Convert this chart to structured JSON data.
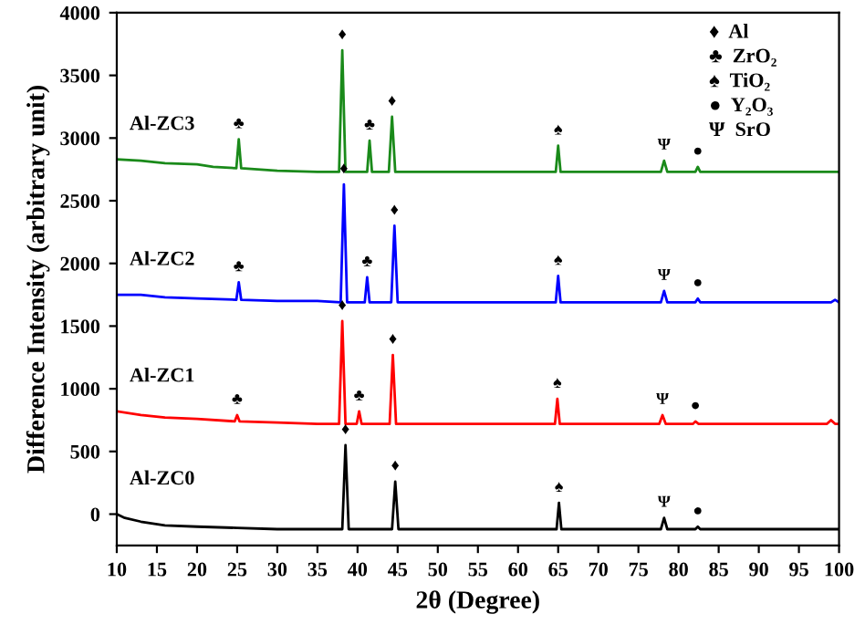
{
  "chart_data": {
    "type": "line",
    "xlabel": "2θ (Degree)",
    "ylabel": "Difference Intensity (arbitrary unit)",
    "xlim": [
      10,
      100
    ],
    "xticks": [
      10,
      15,
      20,
      25,
      30,
      35,
      40,
      45,
      50,
      55,
      60,
      65,
      70,
      75,
      80,
      85,
      90,
      95,
      100
    ],
    "ylim": [
      -250,
      4000
    ],
    "yticks": [
      0,
      500,
      1000,
      1500,
      2000,
      2500,
      3000,
      3500,
      4000
    ],
    "grid": false,
    "legend": false,
    "marker": "none",
    "line_style": "solid",
    "series": [
      {
        "name": "Al-ZC3",
        "color": "#1a8a1a",
        "x": [
          10,
          13,
          16,
          20,
          22,
          24.9,
          25.2,
          25.5,
          30,
          35,
          37.7,
          38.1,
          38.5,
          41.2,
          41.5,
          41.8,
          43.9,
          44.3,
          44.7,
          64.7,
          65.0,
          65.3,
          77.8,
          78.2,
          78.6,
          82.1,
          82.4,
          82.7,
          90,
          100
        ],
        "values": [
          2830,
          2820,
          2800,
          2790,
          2770,
          2760,
          2990,
          2760,
          2740,
          2730,
          2730,
          3700,
          2730,
          2730,
          2980,
          2730,
          2730,
          3170,
          2730,
          2730,
          2940,
          2730,
          2730,
          2820,
          2730,
          2730,
          2770,
          2730,
          2730,
          2730
        ]
      },
      {
        "name": "Al-ZC2",
        "color": "#0000ff",
        "x": [
          10,
          13,
          16,
          20,
          24.9,
          25.2,
          25.5,
          30,
          35,
          37.9,
          38.3,
          38.7,
          40.9,
          41.2,
          41.5,
          44.2,
          44.6,
          45.0,
          64.7,
          65.0,
          65.3,
          77.8,
          78.2,
          78.6,
          82.1,
          82.4,
          82.7,
          90,
          99,
          99.5,
          100
        ],
        "values": [
          1750,
          1750,
          1730,
          1720,
          1710,
          1850,
          1710,
          1700,
          1700,
          1690,
          2630,
          1690,
          1690,
          1890,
          1690,
          1690,
          2300,
          1690,
          1690,
          1900,
          1690,
          1690,
          1780,
          1690,
          1690,
          1720,
          1690,
          1690,
          1690,
          1710,
          1690
        ]
      },
      {
        "name": "Al-ZC1",
        "color": "#ff0000",
        "x": [
          10,
          13,
          16,
          20,
          24.7,
          25,
          25.3,
          30,
          35,
          37.7,
          38.1,
          38.5,
          39.9,
          40.2,
          40.5,
          44.0,
          44.4,
          44.8,
          64.6,
          64.9,
          65.2,
          77.6,
          78.0,
          78.4,
          81.8,
          82.1,
          82.5,
          90,
          98.5,
          99,
          99.5,
          100
        ],
        "values": [
          820,
          790,
          770,
          760,
          740,
          790,
          740,
          730,
          720,
          720,
          1540,
          720,
          720,
          820,
          720,
          720,
          1270,
          720,
          720,
          920,
          720,
          720,
          790,
          720,
          720,
          740,
          720,
          720,
          720,
          750,
          720,
          720
        ]
      },
      {
        "name": "Al-ZC0",
        "color": "#000000",
        "x": [
          10,
          11,
          13,
          16,
          20,
          25,
          30,
          35,
          38.1,
          38.5,
          38.9,
          44.3,
          44.7,
          45.1,
          64.8,
          65.1,
          65.4,
          77.8,
          78.2,
          78.6,
          82.1,
          82.4,
          82.7,
          90,
          100
        ],
        "values": [
          0,
          -30,
          -60,
          -90,
          -100,
          -110,
          -120,
          -120,
          -120,
          550,
          -120,
          -120,
          260,
          -120,
          -120,
          90,
          -120,
          -120,
          -30,
          -120,
          -120,
          -100,
          -120,
          -120,
          -120
        ]
      }
    ],
    "annotations": [
      {
        "text": "♣",
        "x": 25.2,
        "y": 2990
      },
      {
        "text": "♦",
        "x": 38.1,
        "y": 3700
      },
      {
        "text": "♣",
        "x": 41.5,
        "y": 2980
      },
      {
        "text": "♦",
        "x": 44.3,
        "y": 3170
      },
      {
        "text": "♠",
        "x": 65.0,
        "y": 2940
      },
      {
        "text": "Ψ",
        "x": 78.2,
        "y": 2820
      },
      {
        "text": "●",
        "x": 82.4,
        "y": 2770
      },
      {
        "text": "♣",
        "x": 25.2,
        "y": 1850
      },
      {
        "text": "♦",
        "x": 38.3,
        "y": 2630
      },
      {
        "text": "♣",
        "x": 41.2,
        "y": 1890
      },
      {
        "text": "♦",
        "x": 44.6,
        "y": 2300
      },
      {
        "text": "♠",
        "x": 65.0,
        "y": 1900
      },
      {
        "text": "Ψ",
        "x": 78.2,
        "y": 1780
      },
      {
        "text": "●",
        "x": 82.4,
        "y": 1720
      },
      {
        "text": "♣",
        "x": 25,
        "y": 790
      },
      {
        "text": "♦",
        "x": 38.1,
        "y": 1540
      },
      {
        "text": "♣",
        "x": 40.2,
        "y": 820
      },
      {
        "text": "♦",
        "x": 44.4,
        "y": 1270
      },
      {
        "text": "♠",
        "x": 64.9,
        "y": 920
      },
      {
        "text": "Ψ",
        "x": 78.0,
        "y": 790
      },
      {
        "text": "●",
        "x": 82.1,
        "y": 740
      },
      {
        "text": "♦",
        "x": 38.5,
        "y": 550
      },
      {
        "text": "♦",
        "x": 44.7,
        "y": 260
      },
      {
        "text": "♠",
        "x": 65.1,
        "y": 90
      },
      {
        "text": "Ψ",
        "x": 78.2,
        "y": -30
      },
      {
        "text": "●",
        "x": 82.4,
        "y": -100
      },
      "♦  Al",
      "♣  ZrO₂",
      "♠  TiO₂",
      "●  Y₂O₃",
      "Ψ  SrO"
    ]
  }
}
